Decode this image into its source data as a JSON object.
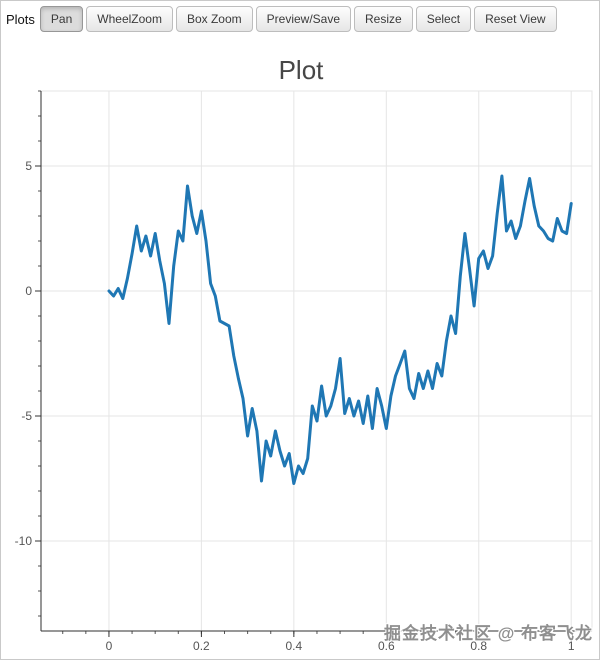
{
  "toolbar": {
    "label": "Plots",
    "buttons": [
      {
        "label": "Pan",
        "active": true
      },
      {
        "label": "WheelZoom",
        "active": false
      },
      {
        "label": "Box Zoom",
        "active": false
      },
      {
        "label": "Preview/Save",
        "active": false
      },
      {
        "label": "Resize",
        "active": false
      },
      {
        "label": "Select",
        "active": false
      },
      {
        "label": "Reset View",
        "active": false
      }
    ]
  },
  "chart_data": {
    "type": "line",
    "title": "Plot",
    "xlabel": "",
    "ylabel": "",
    "xlim": [
      -0.147,
      1.045
    ],
    "ylim": [
      -13.6,
      8.0
    ],
    "x_ticks": [
      0,
      0.2,
      0.4,
      0.6,
      0.8,
      1
    ],
    "y_ticks": [
      5,
      0,
      -5,
      -10
    ],
    "grid": true,
    "legend": "none",
    "line_color": "#1f77b4",
    "line_width": 3,
    "x": [
      0,
      0.01,
      0.02,
      0.03,
      0.04,
      0.05,
      0.06,
      0.07,
      0.08,
      0.09,
      0.1,
      0.11,
      0.12,
      0.13,
      0.14,
      0.15,
      0.16,
      0.17,
      0.18,
      0.19,
      0.2,
      0.21,
      0.22,
      0.23,
      0.24,
      0.25,
      0.26,
      0.27,
      0.28,
      0.29,
      0.3,
      0.31,
      0.32,
      0.33,
      0.34,
      0.35,
      0.36,
      0.37,
      0.38,
      0.39,
      0.4,
      0.41,
      0.42,
      0.43,
      0.44,
      0.45,
      0.46,
      0.47,
      0.48,
      0.49,
      0.5,
      0.51,
      0.52,
      0.53,
      0.54,
      0.55,
      0.56,
      0.57,
      0.58,
      0.59,
      0.6,
      0.61,
      0.62,
      0.63,
      0.64,
      0.65,
      0.66,
      0.67,
      0.68,
      0.69,
      0.7,
      0.71,
      0.72,
      0.73,
      0.74,
      0.75,
      0.76,
      0.77,
      0.78,
      0.79,
      0.8,
      0.81,
      0.82,
      0.83,
      0.84,
      0.85,
      0.86,
      0.87,
      0.88,
      0.89,
      0.9,
      0.91,
      0.92,
      0.93,
      0.94,
      0.95,
      0.96,
      0.97,
      0.98,
      0.99,
      1
    ],
    "y": [
      0.0,
      -0.2,
      0.1,
      -0.3,
      0.5,
      1.5,
      2.6,
      1.6,
      2.2,
      1.4,
      2.3,
      1.2,
      0.3,
      -1.3,
      1.0,
      2.4,
      2.0,
      4.2,
      3.0,
      2.3,
      3.2,
      2.0,
      0.3,
      -0.2,
      -1.2,
      -1.3,
      -1.4,
      -2.6,
      -3.5,
      -4.3,
      -5.8,
      -4.7,
      -5.6,
      -7.6,
      -6.0,
      -6.6,
      -5.6,
      -6.4,
      -7.0,
      -6.5,
      -7.7,
      -7.0,
      -7.3,
      -6.7,
      -4.6,
      -5.2,
      -3.8,
      -5.0,
      -4.6,
      -3.9,
      -2.7,
      -4.9,
      -4.3,
      -5.0,
      -4.4,
      -5.3,
      -4.2,
      -5.5,
      -3.9,
      -4.6,
      -5.5,
      -4.2,
      -3.4,
      -2.9,
      -2.4,
      -3.9,
      -4.3,
      -3.3,
      -3.9,
      -3.2,
      -3.9,
      -2.9,
      -3.4,
      -2.0,
      -1.0,
      -1.7,
      0.6,
      2.3,
      0.9,
      -0.6,
      1.3,
      1.6,
      0.9,
      1.4,
      3.1,
      4.6,
      2.4,
      2.8,
      2.1,
      2.6,
      3.6,
      4.5,
      3.4,
      2.6,
      2.4,
      2.1,
      2.0,
      2.9,
      2.4,
      2.3,
      3.5
    ]
  },
  "watermark": "掘金技术社区 @ 布客飞龙"
}
